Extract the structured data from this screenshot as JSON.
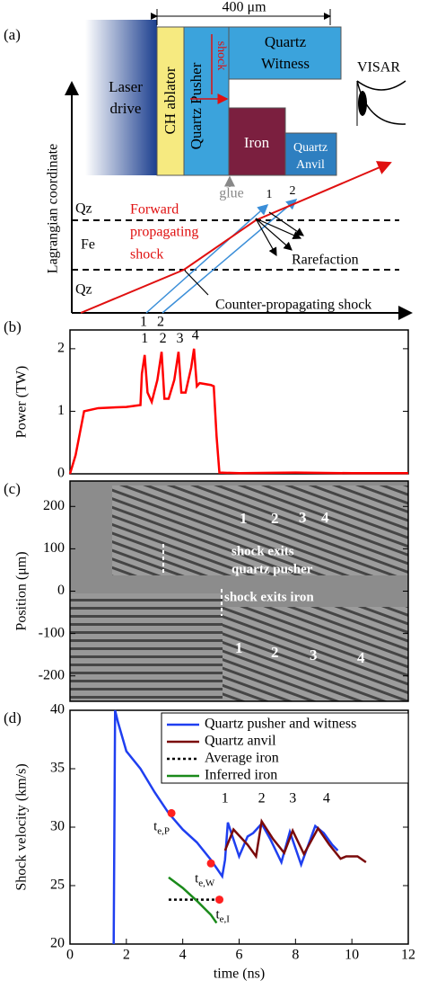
{
  "panel_labels": [
    "(a)",
    "(b)",
    "(c)",
    "(d)"
  ],
  "diagram": {
    "width_label": "400 μm",
    "laser_drive": [
      "Laser",
      "drive"
    ],
    "ch_ablator": "CH ablator",
    "quartz_pusher": "Quartz Pusher",
    "shock": "shock",
    "quartz_witness": [
      "Quartz",
      "Witness"
    ],
    "iron": "Iron",
    "quartz_anvil": [
      "Quartz",
      "Anvil"
    ],
    "visar": "VISAR",
    "glue": "glue",
    "axis_label": "Lagrangian coordinate",
    "layers": [
      "Qz",
      "Fe",
      "Qz"
    ],
    "forward_shock": [
      "Forward",
      "propagating",
      "shock"
    ],
    "top_numbers": [
      "1",
      "2"
    ],
    "rarefaction": "Rarefaction",
    "counter_shock": "Counter-propagating shock",
    "bottom_numbers": [
      "1",
      "2"
    ]
  },
  "chart_data": [
    {
      "type": "line",
      "y_label": "Power (TW)",
      "color": "#ff0000",
      "xlim": [
        0,
        12
      ],
      "ylim": [
        0,
        2.3
      ],
      "yticks": [
        0,
        1,
        2
      ],
      "x": [
        0,
        0.2,
        0.5,
        1,
        2,
        2.5,
        2.55,
        2.65,
        2.75,
        2.9,
        3.1,
        3.25,
        3.35,
        3.5,
        3.7,
        3.85,
        3.95,
        4.1,
        4.3,
        4.4,
        4.5,
        4.6,
        5.0,
        5.1,
        5.2,
        5.3,
        6,
        8,
        10,
        12
      ],
      "values": [
        0,
        0.3,
        1.0,
        1.05,
        1.07,
        1.1,
        1.6,
        1.9,
        1.3,
        1.15,
        1.5,
        1.95,
        1.2,
        1.2,
        1.5,
        1.95,
        1.3,
        1.3,
        1.7,
        2.0,
        1.4,
        1.45,
        1.42,
        1.4,
        0.6,
        0.02,
        0.01,
        0.02,
        0.01,
        0.01
      ],
      "annotations": [
        "1",
        "2",
        "3",
        "4"
      ]
    },
    {
      "type": "image",
      "y_label": "Position (μm)",
      "ylim": [
        -260,
        260
      ],
      "yticks": [
        200,
        100,
        0,
        -100,
        -200
      ],
      "annotations": [
        "1",
        "2",
        "3",
        "4",
        "shock exits",
        "quartz pusher",
        "shock exits iron",
        "1",
        "2",
        "3",
        "4"
      ]
    },
    {
      "type": "line",
      "y_label": "Shock velocity (km/s)",
      "x_label": "time (ns)",
      "xlim": [
        0,
        12
      ],
      "ylim": [
        20,
        40
      ],
      "xticks": [
        0,
        2,
        4,
        6,
        8,
        10,
        12
      ],
      "yticks": [
        20,
        25,
        30,
        35,
        40
      ],
      "series": [
        {
          "name": "Quartz pusher and witness",
          "color": "#1f3ff0",
          "style": "solid",
          "x": [
            1.55,
            1.6,
            1.7,
            2.0,
            2.5,
            3.0,
            3.5,
            4.0,
            4.5,
            5.0,
            5.4,
            5.5,
            5.6,
            6.0,
            6.3,
            6.5,
            6.8,
            7.1,
            7.5,
            7.8,
            8.2,
            8.7,
            9.0,
            9.3,
            9.5
          ],
          "values": [
            20,
            40,
            39,
            36.5,
            35,
            33,
            31.2,
            29.8,
            28.7,
            27.2,
            25.8,
            27.2,
            30.4,
            27.5,
            29.2,
            29.5,
            30.3,
            29,
            27,
            29.6,
            26.8,
            30.1,
            29.5,
            28.5,
            28
          ]
        },
        {
          "name": "Quartz anvil",
          "color": "#7a0a0a",
          "style": "solid",
          "x": [
            5.5,
            5.8,
            6.3,
            6.6,
            6.8,
            7.2,
            7.6,
            7.9,
            8.3,
            8.8,
            9.2,
            9.6,
            9.8,
            10.2,
            10.5
          ],
          "values": [
            28,
            29.8,
            28.5,
            27.5,
            30.5,
            29,
            27.8,
            29.7,
            27.7,
            29.9,
            28.5,
            27.3,
            27.5,
            27.5,
            27
          ]
        },
        {
          "name": "Average iron",
          "color": "#000000",
          "style": "dotted",
          "x": [
            3.5,
            5.2
          ],
          "values": [
            23.8,
            23.8
          ]
        },
        {
          "name": "Inferred iron",
          "color": "#1a8a1a",
          "style": "solid",
          "x": [
            3.5,
            4.0,
            4.5,
            5.0,
            5.2
          ],
          "values": [
            25.7,
            24.8,
            23.7,
            22.5,
            21.8
          ]
        }
      ],
      "points_color": "#ff2020",
      "points": [
        {
          "x": 3.6,
          "y": 31.2,
          "label": "t",
          "sub": "e,P"
        },
        {
          "x": 5.0,
          "y": 26.9,
          "label": "t",
          "sub": "e,W"
        },
        {
          "x": 5.3,
          "y": 23.8,
          "label": "t",
          "sub": "e,I"
        }
      ],
      "annotations": [
        "1",
        "2",
        "3",
        "4"
      ]
    }
  ]
}
